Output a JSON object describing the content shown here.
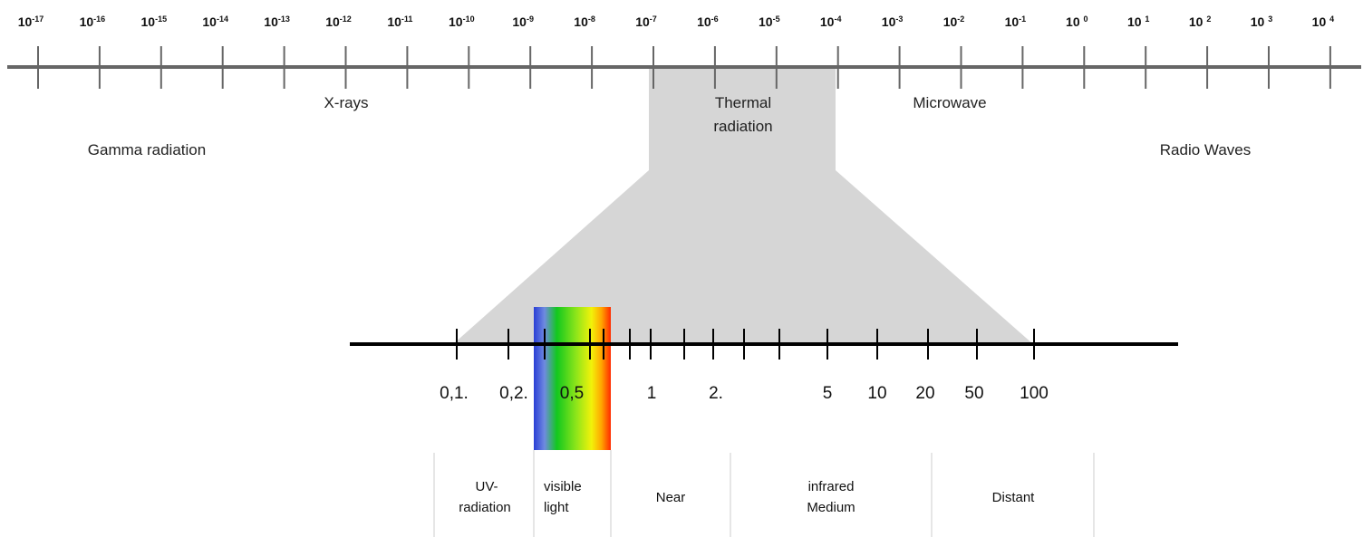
{
  "top_scale": {
    "exponent_labels": [
      {
        "base": "10",
        "exp": "-17"
      },
      {
        "base": "10",
        "exp": "-16"
      },
      {
        "base": "10",
        "exp": "-15"
      },
      {
        "base": "10",
        "exp": "-14"
      },
      {
        "base": "10",
        "exp": "-13"
      },
      {
        "base": "10",
        "exp": "-12"
      },
      {
        "base": "10",
        "exp": "-11"
      },
      {
        "base": "10",
        "exp": "-10"
      },
      {
        "base": "10",
        "exp": "-9"
      },
      {
        "base": "10",
        "exp": "-8"
      },
      {
        "base": "10",
        "exp": "-7"
      },
      {
        "base": "10",
        "exp": "-6"
      },
      {
        "base": "10",
        "exp": "-5"
      },
      {
        "base": "10",
        "exp": "-4"
      },
      {
        "base": "10",
        "exp": "-3"
      },
      {
        "base": "10",
        "exp": "-2"
      },
      {
        "base": "10",
        "exp": "-1"
      },
      {
        "base": "10 ",
        "exp": "0"
      },
      {
        "base": "10 ",
        "exp": "1"
      },
      {
        "base": "10 ",
        "exp": "2"
      },
      {
        "base": "10 ",
        "exp": "3"
      },
      {
        "base": "10 ",
        "exp": "4"
      }
    ],
    "regions": {
      "x_rays": "X-rays",
      "thermal_line1": "Thermal",
      "thermal_line2": "radiation",
      "microwave": "Microwave",
      "gamma": "Gamma radiation",
      "radio": "Radio Waves"
    }
  },
  "lower_scale": {
    "tick_labels": [
      "0,1.",
      "0,2.",
      "0,5",
      "1",
      "2.",
      "5",
      "10",
      "20",
      "50",
      "100"
    ]
  },
  "bands": {
    "uv_line1": "UV-",
    "uv_line2": "radiation",
    "visible_line1": "visible",
    "visible_line2": "light",
    "near": "Near",
    "infrared_line1": "infrared",
    "infrared_line2": "Medium",
    "distant": "Distant"
  },
  "colors": {
    "top_axis": "#666666",
    "zoom_fill": "#d6d6d6",
    "lower_axis": "#000000",
    "band_divider": "#cccccc",
    "spectrum": [
      "#2a3fd6",
      "#6f8ae0",
      "#12c81e",
      "#8ee51a",
      "#f2f20a",
      "#ffa500",
      "#ff2a00"
    ]
  }
}
